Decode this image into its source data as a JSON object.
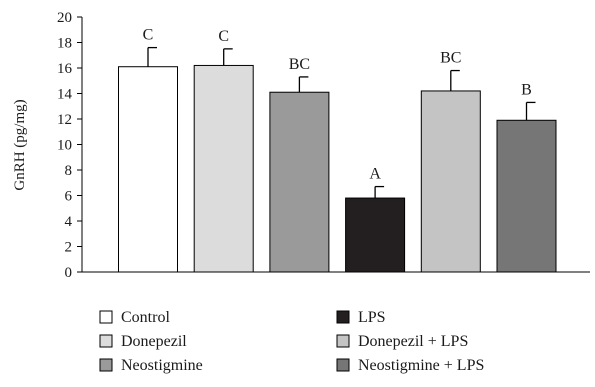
{
  "chart_data": {
    "type": "bar",
    "title": "",
    "xlabel": "",
    "ylabel": "GnRH (pg/mg)",
    "ylim": [
      0,
      20
    ],
    "yticks": [
      0,
      2,
      4,
      6,
      8,
      10,
      12,
      14,
      16,
      18,
      20
    ],
    "grid": false,
    "legend_position": "bottom",
    "categories": [
      "Control",
      "Donepezil",
      "Neostigmine",
      "LPS",
      "Donepezil + LPS",
      "Neostigmine + LPS"
    ],
    "values": [
      16.1,
      16.2,
      14.1,
      5.8,
      14.2,
      11.9
    ],
    "errors": [
      1.5,
      1.3,
      1.2,
      0.9,
      1.6,
      1.4
    ],
    "significance_letters": [
      "C",
      "C",
      "BC",
      "A",
      "BC",
      "B"
    ],
    "colors": [
      "#ffffff",
      "#dcdcdc",
      "#9a9a9a",
      "#231f20",
      "#c4c4c4",
      "#767676"
    ]
  }
}
